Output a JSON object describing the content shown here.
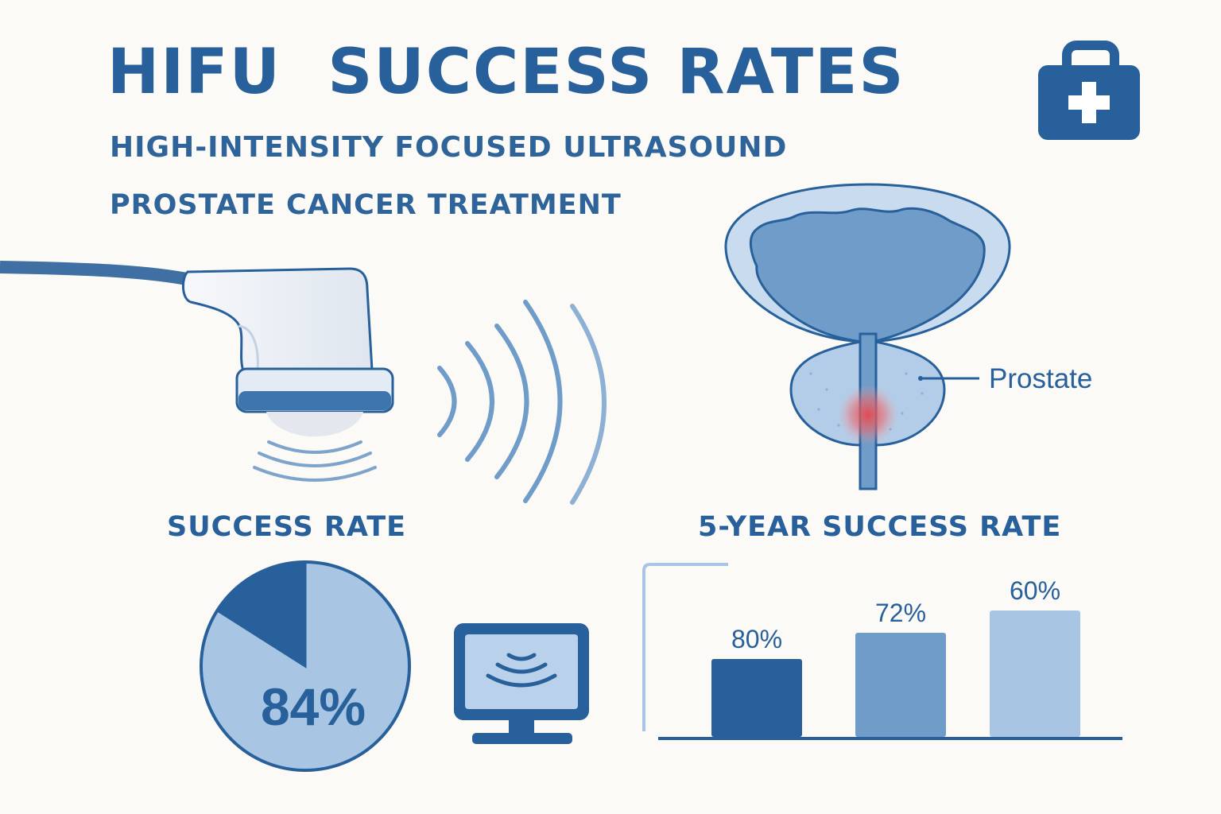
{
  "header": {
    "title": "HIFU  SUCCESS RATES",
    "subtitle_1": "HIGH-INTENSITY FOCUSED ULTRASOUND",
    "subtitle_2": "PROSTATE CANCER TREATMENT"
  },
  "anatomy": {
    "label": "Prostate"
  },
  "icons": [
    "medical-kit-icon",
    "ultrasound-probe-icon",
    "ultrasound-waves-icon",
    "monitor-icon"
  ],
  "colors": {
    "primary": "#27609a",
    "mid": "#6f9cc8",
    "light": "#a8c5e3",
    "pale": "#c9dcef",
    "background": "#fbfaf6",
    "hotspot": "#e8464c"
  },
  "chart_data": [
    {
      "type": "pie",
      "title": "SUCCESS RATE",
      "values": [
        84,
        16
      ],
      "data_label": "84%"
    },
    {
      "type": "bar",
      "title": "5-YEAR SUCCESS RATE",
      "categories": [
        "",
        "",
        ""
      ],
      "values": [
        80,
        72,
        60
      ],
      "data_labels": [
        "80%",
        "72%",
        "60%"
      ],
      "ylim": [
        0,
        100
      ]
    }
  ]
}
